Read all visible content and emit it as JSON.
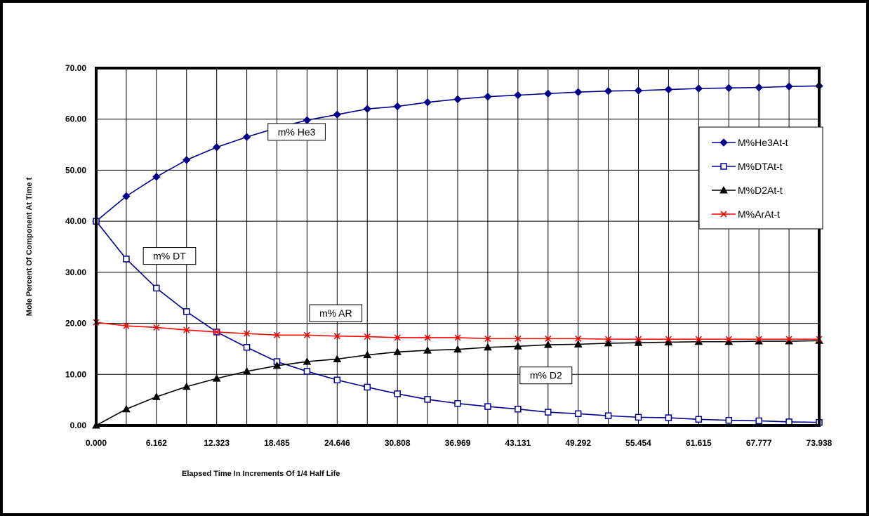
{
  "chart_data": {
    "type": "line",
    "title": "",
    "xlabel": "Elapsed Time In Increments Of 1/4 Half Life",
    "ylabel": "Mole Percent Of Component At Time t",
    "ylim": [
      0,
      70
    ],
    "xlim": [
      0,
      73.938
    ],
    "grid": true,
    "legend_position": "right",
    "x_tick_labels": [
      "0.000",
      "6.162",
      "12.323",
      "18.485",
      "24.646",
      "30.808",
      "36.969",
      "43.131",
      "49.292",
      "55.454",
      "61.615",
      "67.777",
      "73.938"
    ],
    "y_tick_labels": [
      "0.00",
      "10.00",
      "20.00",
      "30.00",
      "40.00",
      "50.00",
      "60.00",
      "70.00"
    ],
    "x": [
      0,
      3.081,
      6.162,
      9.242,
      12.323,
      15.404,
      18.485,
      21.565,
      24.646,
      27.727,
      30.808,
      33.888,
      36.969,
      40.05,
      43.131,
      46.211,
      49.292,
      52.373,
      55.454,
      58.534,
      61.615,
      64.696,
      67.777,
      70.857,
      73.938
    ],
    "series": [
      {
        "name": "M%He3At-t",
        "color": "#00008b",
        "marker": "diamond",
        "values": [
          40.0,
          44.9,
          48.7,
          52.0,
          54.5,
          56.5,
          58.3,
          59.8,
          60.9,
          62.0,
          62.5,
          63.3,
          63.9,
          64.4,
          64.7,
          65.0,
          65.3,
          65.5,
          65.6,
          65.8,
          66.0,
          66.1,
          66.2,
          66.4,
          66.5
        ]
      },
      {
        "name": "M%DTAt-t",
        "color": "#00008b",
        "marker": "square-open",
        "values": [
          40.0,
          32.6,
          26.9,
          22.3,
          18.3,
          15.3,
          12.5,
          10.6,
          8.9,
          7.5,
          6.2,
          5.1,
          4.3,
          3.7,
          3.2,
          2.6,
          2.3,
          1.9,
          1.6,
          1.5,
          1.2,
          1.0,
          0.9,
          0.7,
          0.6
        ]
      },
      {
        "name": "M%D2At-t",
        "color": "#000000",
        "marker": "triangle",
        "values": [
          0.0,
          3.2,
          5.6,
          7.6,
          9.2,
          10.6,
          11.7,
          12.5,
          13.0,
          13.8,
          14.4,
          14.7,
          14.9,
          15.3,
          15.5,
          15.8,
          15.9,
          16.1,
          16.2,
          16.3,
          16.4,
          16.4,
          16.5,
          16.5,
          16.6
        ]
      },
      {
        "name": "M%ArAt-t",
        "color": "#ff0000",
        "marker": "x",
        "values": [
          20.2,
          19.5,
          19.2,
          18.7,
          18.3,
          18.0,
          17.7,
          17.7,
          17.5,
          17.4,
          17.2,
          17.2,
          17.2,
          17.0,
          17.0,
          17.0,
          17.0,
          16.9,
          16.9,
          16.9,
          16.9,
          16.9,
          16.9,
          16.9,
          16.9
        ]
      }
    ],
    "annotations": [
      {
        "text": "m% He3",
        "x": 20.5,
        "y": 57.5
      },
      {
        "text": "m% DT",
        "x": 7.5,
        "y": 33.2
      },
      {
        "text": "m% AR",
        "x": 24.5,
        "y": 22.0
      },
      {
        "text": "m% D2",
        "x": 46.0,
        "y": 9.8
      }
    ]
  }
}
